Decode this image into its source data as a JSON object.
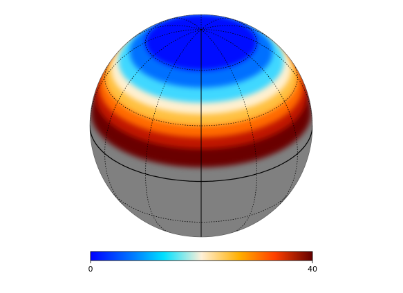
{
  "chart_data": {
    "type": "orthographic",
    "colorbar": {
      "lim": [
        0,
        40
      ],
      "ticks": [
        0,
        40
      ]
    }
  }
}
